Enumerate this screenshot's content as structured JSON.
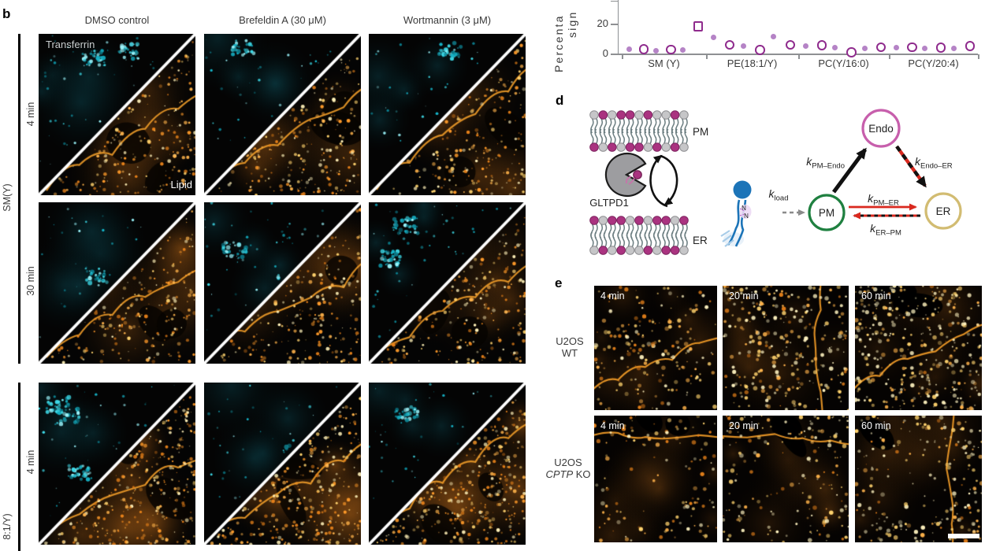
{
  "panel_b": {
    "label": "b",
    "column_headers": [
      "DMSO control",
      "Brefeldin A (30 μM)",
      "Wortmannin (3 μM)"
    ],
    "group1_label": "SM(Y)",
    "group2_label": "8:1/Y)",
    "row_time_labels": [
      "4 min",
      "30 min",
      "4 min"
    ],
    "channel_top_label": "Transferrin",
    "channel_bottom_label": "Lipid"
  },
  "chart_data": {
    "type": "scatter",
    "ylabel_visible_lines": [
      "Percenta",
      "sign"
    ],
    "yticks": [
      "0",
      "20"
    ],
    "marker_colors": {
      "filled": "#b583c6",
      "open": "#8f2b8d"
    },
    "groups": [
      {
        "label": "SM (Y)",
        "markers": [
          "filled",
          "open",
          "filled",
          "open",
          "filled",
          "open_square"
        ],
        "values": [
          3.2,
          4.6,
          2.4,
          4.2,
          3.0,
          19.8
        ]
      },
      {
        "label": "PE(18:1/Y)",
        "markers": [
          "filled",
          "open",
          "filled",
          "open",
          "filled",
          "open"
        ],
        "values": [
          11.3,
          7.4,
          5.7,
          4.0,
          11.9,
          7.3
        ]
      },
      {
        "label": "PC(Y/16:0)",
        "markers": [
          "filled",
          "open",
          "filled",
          "open",
          "filled",
          "open"
        ],
        "values": [
          5.3,
          7.0,
          4.7,
          2.5,
          4.2,
          5.9
        ]
      },
      {
        "label": "PC(Y/20:4)",
        "markers": [
          "filled",
          "open",
          "filled",
          "open",
          "filled",
          "open"
        ],
        "values": [
          4.7,
          5.9,
          3.8,
          5.6,
          4.2,
          6.5
        ]
      }
    ]
  },
  "panel_d": {
    "label": "d",
    "membrane_top": "PM",
    "protein": "GLTPD1",
    "membrane_bottom": "ER",
    "nodes": {
      "endo": "Endo",
      "pm": "PM",
      "er": "ER"
    },
    "rates": {
      "pm_endo": {
        "k": "k",
        "sub": "PM–Endo"
      },
      "endo_er": {
        "k": "k",
        "sub": "Endo–ER"
      },
      "pm_er": {
        "k": "k",
        "sub": "PM–ER"
      },
      "er_pm": {
        "k": "k",
        "sub": "ER–PM"
      },
      "load": {
        "k": "k",
        "sub": "load"
      }
    }
  },
  "panel_e": {
    "label": "e",
    "times": [
      "4 min",
      "20 min",
      "60 min"
    ],
    "rows": [
      {
        "line1": "U2OS",
        "line2": "WT"
      },
      {
        "line1": "U2OS",
        "line2_italic": "CPTP",
        "line2_rest": " KO"
      }
    ]
  }
}
